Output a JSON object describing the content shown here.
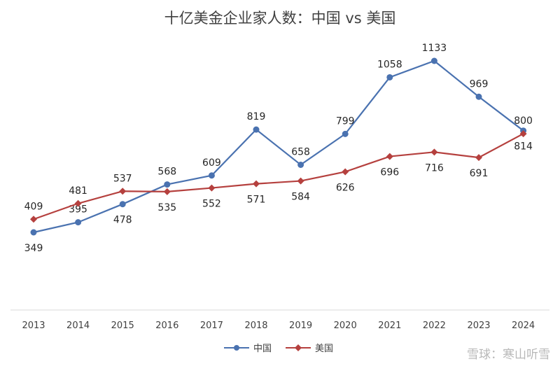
{
  "chart_data": {
    "type": "line",
    "title": "十亿美金企业家人数：中国 vs 美国",
    "categories": [
      "2013",
      "2014",
      "2015",
      "2016",
      "2017",
      "2018",
      "2019",
      "2020",
      "2021",
      "2022",
      "2023",
      "2024"
    ],
    "series": [
      {
        "name": "中国",
        "color": "#4a72b0",
        "marker": "circle",
        "values": [
          349,
          395,
          478,
          568,
          609,
          819,
          658,
          799,
          1058,
          1133,
          969,
          814
        ]
      },
      {
        "name": "美国",
        "color": "#b5403e",
        "marker": "diamond",
        "values": [
          409,
          481,
          537,
          535,
          552,
          571,
          584,
          626,
          696,
          716,
          691,
          800
        ]
      }
    ],
    "data_labels": true,
    "grid": false,
    "legend": "bottom"
  },
  "footer": {
    "watermark": "雪球：寒山听雪"
  }
}
